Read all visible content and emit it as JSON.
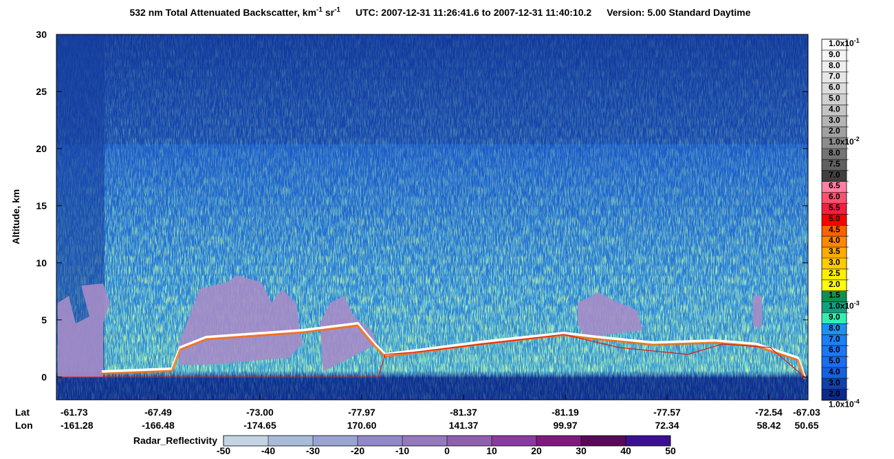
{
  "chart_data": {
    "type": "heatmap",
    "title": {
      "main": "532 nm Total Attenuated Backscatter, km",
      "sup1": "-1",
      "unit2": " sr",
      "sup2": "-1",
      "utc": "UTC:  2007-12-31 11:26:41.6  to  2007-12-31 11:40:10.2",
      "version": "Version: 5.00  Standard  Daytime"
    },
    "y_label": "Altitude, km",
    "ylim": [
      -2,
      30
    ],
    "yticks": [
      0,
      5,
      10,
      15,
      20,
      25,
      30
    ],
    "x_rows": [
      {
        "name": "Lat",
        "labels": [
          "-61.73",
          "-67.49",
          "-73.00",
          "-77.97",
          "-81.37",
          "-81.19",
          "-77.57",
          "-72.54",
          "-67.03"
        ]
      },
      {
        "name": "Lon",
        "labels": [
          "-161.28",
          "-166.48",
          "-174.65",
          "170.60",
          "141.37",
          "99.97",
          "72.34",
          "58.42",
          "50.65"
        ]
      }
    ],
    "colorbar": {
      "labels": [
        {
          "label": "1.0x10",
          "exp": "-1"
        },
        "9.0",
        "8.0",
        "7.0",
        "6.0",
        "5.0",
        "4.0",
        "3.0",
        "2.0",
        {
          "label": "1.0x10",
          "exp": "-2"
        },
        "8.0",
        "7.5",
        "7.0",
        "6.5",
        "6.0",
        "5.5",
        "5.0",
        "4.5",
        "4.0",
        "3.5",
        "3.0",
        "2.5",
        "2.0",
        "1.5",
        {
          "label": "1.0x10",
          "exp": "-3"
        },
        "9.0",
        "8.0",
        "7.0",
        "6.0",
        "5.0",
        "4.0",
        "3.0",
        "2.0",
        {
          "label": "1.0x10",
          "exp": "-4"
        }
      ],
      "colors": [
        "#fbfbfb",
        "#f4f4f4",
        "#eeeeee",
        "#e6e6e6",
        "#dcdcdc",
        "#d0d0d0",
        "#c4c4c4",
        "#b4b4b4",
        "#a0a0a0",
        "#8c8c8c",
        "#747474",
        "#606060",
        "#404040",
        "#ff80a0",
        "#ff5070",
        "#f02040",
        "#ff0000",
        "#ff6000",
        "#ff8800",
        "#ffaa00",
        "#ffcc00",
        "#ffee00",
        "#ffff00",
        "#109050",
        "#10a080",
        "#30f0b0",
        "#2090f0",
        "#1a80f5",
        "#1a78f5",
        "#1a6ef0",
        "#1560e0",
        "#1040b0",
        "#0b2a8c"
      ]
    },
    "radar_colorbar": {
      "label": "Radar_Reflectivity",
      "lim": [
        -50,
        50
      ],
      "ticks": [
        -50,
        -40,
        -30,
        -20,
        -10,
        0,
        10,
        20,
        30,
        40,
        50
      ],
      "colors": [
        "#c4d4e4",
        "#a8bcd8",
        "#9aa4d2",
        "#9088c8",
        "#9478c0",
        "#9060b0",
        "#8a3aa0",
        "#801880",
        "#5a0858",
        "#3a1090"
      ]
    }
  }
}
